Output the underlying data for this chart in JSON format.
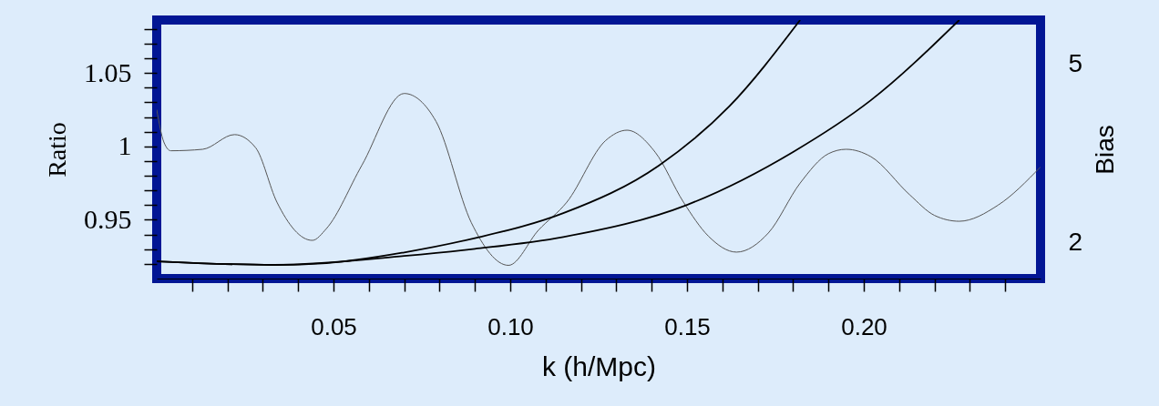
{
  "chart_data": {
    "type": "line",
    "xlabel": "k  (h/Mpc)",
    "ylabel": "Ratio",
    "y2label": "Bias",
    "xlim": [
      0,
      0.25
    ],
    "ylim": [
      0.91,
      1.086
    ],
    "y2lim": [
      1.4,
      5.75
    ],
    "xticks": [
      {
        "value": 0.01,
        "label": null
      },
      {
        "value": 0.02,
        "label": null
      },
      {
        "value": 0.03,
        "label": null
      },
      {
        "value": 0.04,
        "label": null
      },
      0.05,
      {
        "value": 0.06,
        "label": null
      },
      {
        "value": 0.07,
        "label": null
      },
      {
        "value": 0.08,
        "label": null
      },
      {
        "value": 0.09,
        "label": null
      },
      {
        "value": 0.1,
        "label": "0.10"
      },
      {
        "value": 0.11,
        "label": null
      },
      {
        "value": 0.12,
        "label": null
      },
      {
        "value": 0.13,
        "label": null
      },
      {
        "value": 0.14,
        "label": null
      },
      0.15,
      {
        "value": 0.16,
        "label": null
      },
      {
        "value": 0.17,
        "label": null
      },
      {
        "value": 0.18,
        "label": null
      },
      {
        "value": 0.19,
        "label": null
      },
      {
        "value": 0.2,
        "label": "0.20"
      },
      {
        "value": 0.21,
        "label": null
      },
      {
        "value": 0.22,
        "label": null
      },
      {
        "value": 0.23,
        "label": null
      },
      {
        "value": 0.24,
        "label": null
      }
    ],
    "yticks": [
      {
        "value": 0.92,
        "label": null
      },
      {
        "value": 0.93,
        "label": null
      },
      {
        "value": 0.94,
        "label": null
      },
      0.95,
      {
        "value": 0.96,
        "label": null
      },
      {
        "value": 0.97,
        "label": null
      },
      {
        "value": 0.98,
        "label": null
      },
      {
        "value": 0.99,
        "label": null
      },
      1,
      {
        "value": 1.01,
        "label": null
      },
      {
        "value": 1.02,
        "label": null
      },
      {
        "value": 1.03,
        "label": null
      },
      {
        "value": 1.04,
        "label": null
      },
      1.05,
      {
        "value": 1.06,
        "label": null
      },
      {
        "value": 1.07,
        "label": null
      },
      {
        "value": 1.08,
        "label": null
      }
    ],
    "y2ticks": [
      2,
      5
    ],
    "series": [
      {
        "color": "#555555",
        "x": [
          0,
          0.002,
          0.004,
          0.013,
          0.022,
          0.028,
          0.034,
          0.044,
          0.048,
          0.058,
          0.07,
          0.079,
          0.089,
          0.0995,
          0.108,
          0.116,
          0.127,
          0.133,
          0.141,
          0.149,
          0.156,
          0.164,
          0.173,
          0.182,
          0.19,
          0.195,
          0.202,
          0.213,
          0.22,
          0.227,
          0.238,
          0.25
        ],
        "values": [
          1.025,
          1.003,
          0.997,
          0.998,
          1.008,
          0.999,
          0.962,
          0.936,
          0.944,
          0.987,
          1.036,
          1.017,
          0.948,
          0.919,
          0.943,
          0.962,
          1.004,
          1.011,
          0.996,
          0.962,
          0.939,
          0.928,
          0.941,
          0.975,
          0.995,
          0.998,
          0.993,
          0.967,
          0.953,
          0.949,
          0.96,
          0.986
        ]
      },
      {
        "color": "#000000",
        "axis": "y2",
        "x": [
          0,
          0.033,
          0.048,
          0.07,
          0.09,
          0.115,
          0.142,
          0.162,
          0.182
        ],
        "values": [
          1.69,
          1.63,
          1.66,
          1.84,
          2.08,
          2.5,
          3.3,
          4.3,
          5.75
        ]
      },
      {
        "color": "#000000",
        "axis": "y2",
        "x": [
          0,
          0.033,
          0.07,
          0.09,
          0.115,
          0.15,
          0.18,
          0.202,
          0.227
        ],
        "values": [
          1.69,
          1.63,
          1.78,
          1.9,
          2.1,
          2.64,
          3.53,
          4.4,
          5.75
        ]
      }
    ]
  }
}
